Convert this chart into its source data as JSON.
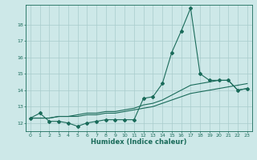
{
  "title": "",
  "xlabel": "Humidex (Indice chaleur)",
  "ylabel": "",
  "bg_color": "#cde8e8",
  "grid_color": "#a8cccc",
  "line_color": "#1a6b5a",
  "xlim": [
    -0.5,
    23.5
  ],
  "ylim": [
    11.5,
    19.2
  ],
  "yticks": [
    12,
    13,
    14,
    15,
    16,
    17,
    18
  ],
  "xticks": [
    0,
    1,
    2,
    3,
    4,
    5,
    6,
    7,
    8,
    9,
    10,
    11,
    12,
    13,
    14,
    15,
    16,
    17,
    18,
    19,
    20,
    21,
    22,
    23
  ],
  "series1_x": [
    0,
    1,
    2,
    3,
    4,
    5,
    6,
    7,
    8,
    9,
    10,
    11,
    12,
    13,
    14,
    15,
    16,
    17,
    18,
    19,
    20,
    21,
    22,
    23
  ],
  "series1_y": [
    12.3,
    12.6,
    12.1,
    12.1,
    12.0,
    11.8,
    12.0,
    12.1,
    12.2,
    12.2,
    12.2,
    12.2,
    13.5,
    13.6,
    14.4,
    16.3,
    17.6,
    19.0,
    15.0,
    14.6,
    14.6,
    14.6,
    14.0,
    14.1
  ],
  "series2_x": [
    0,
    1,
    2,
    3,
    4,
    5,
    6,
    7,
    8,
    9,
    10,
    11,
    12,
    13,
    14,
    15,
    16,
    17,
    18,
    19,
    20,
    21,
    22,
    23
  ],
  "series2_y": [
    12.3,
    12.3,
    12.3,
    12.4,
    12.4,
    12.4,
    12.5,
    12.5,
    12.6,
    12.6,
    12.7,
    12.8,
    12.9,
    13.0,
    13.2,
    13.4,
    13.6,
    13.8,
    13.9,
    14.0,
    14.1,
    14.2,
    14.3,
    14.4
  ],
  "series3_x": [
    0,
    1,
    2,
    3,
    4,
    5,
    6,
    7,
    8,
    9,
    10,
    11,
    12,
    13,
    14,
    15,
    16,
    17,
    18,
    19,
    20,
    21,
    22,
    23
  ],
  "series3_y": [
    12.3,
    12.3,
    12.3,
    12.4,
    12.4,
    12.5,
    12.6,
    12.6,
    12.7,
    12.7,
    12.8,
    12.9,
    13.1,
    13.2,
    13.4,
    13.7,
    14.0,
    14.3,
    14.4,
    14.5,
    14.6,
    14.6,
    14.0,
    14.1
  ],
  "xlabel_fontsize": 6.0,
  "tick_fontsize": 4.5,
  "marker_size": 2.0
}
